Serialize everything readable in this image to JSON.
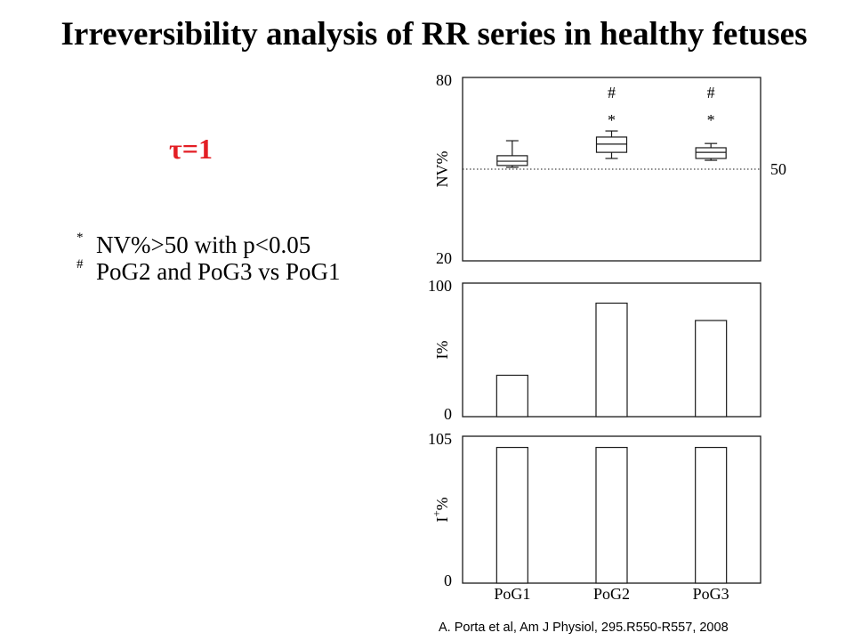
{
  "slide": {
    "title": "Irreversibility analysis of RR series in healthy fetuses",
    "tau_label": "τ=1",
    "notes": [
      {
        "marker": "*",
        "text": "NV%>50 with p<0.05"
      },
      {
        "marker": "#",
        "text": "PoG2 and PoG3 vs PoG1"
      }
    ],
    "citation": "A. Porta et al, Am J Physiol, 295.R550-R557, 2008"
  },
  "colors": {
    "background": "#ffffff",
    "text": "#000000",
    "tau": "#e31e24",
    "plot_stroke": "#1a1a1a"
  },
  "chart_data": [
    {
      "type": "box",
      "categories": [
        "PoG1",
        "PoG2",
        "PoG3"
      ],
      "ylabel": {
        "text": "NV%"
      },
      "ylim": [
        20,
        80
      ],
      "yticks": [
        {
          "value": 80,
          "label": "80"
        },
        {
          "value": 20,
          "label": "20"
        }
      ],
      "boxes": [
        {
          "category": "PoG1",
          "whisker_low": 50.6,
          "q1": 51.2,
          "median": 52.6,
          "q3": 54.4,
          "whisker_high": 59.3
        },
        {
          "category": "PoG2",
          "whisker_low": 53.5,
          "q1": 55.5,
          "median": 58.2,
          "q3": 60.5,
          "whisker_high": 62.5
        },
        {
          "category": "PoG3",
          "whisker_low": 52.9,
          "q1": 53.5,
          "median": 55.5,
          "q3": 57.0,
          "whisker_high": 58.4
        }
      ],
      "reference_line": {
        "y": 50,
        "label": "50",
        "style": "dotted"
      },
      "annotations": [
        {
          "category": "PoG2",
          "symbols": [
            "#",
            "*"
          ]
        },
        {
          "category": "PoG3",
          "symbols": [
            "#",
            "*"
          ]
        }
      ],
      "grid": false
    },
    {
      "type": "bar",
      "categories": [
        "PoG1",
        "PoG2",
        "PoG3"
      ],
      "values": [
        31,
        85,
        72
      ],
      "ylabel": {
        "text": "I%"
      },
      "ylim": [
        0,
        100
      ],
      "yticks": [
        {
          "value": 100,
          "label": "100"
        },
        {
          "value": 0,
          "label": "0"
        }
      ],
      "grid": false
    },
    {
      "type": "bar",
      "categories": [
        "PoG1",
        "PoG2",
        "PoG3"
      ],
      "values": [
        97,
        97,
        97
      ],
      "ylabel": {
        "text": "I",
        "sup": "+",
        "after": "%"
      },
      "ylim": [
        0,
        105
      ],
      "yticks": [
        {
          "value": 105,
          "label": "105"
        },
        {
          "value": 0,
          "label": "0"
        }
      ],
      "grid": false
    }
  ]
}
